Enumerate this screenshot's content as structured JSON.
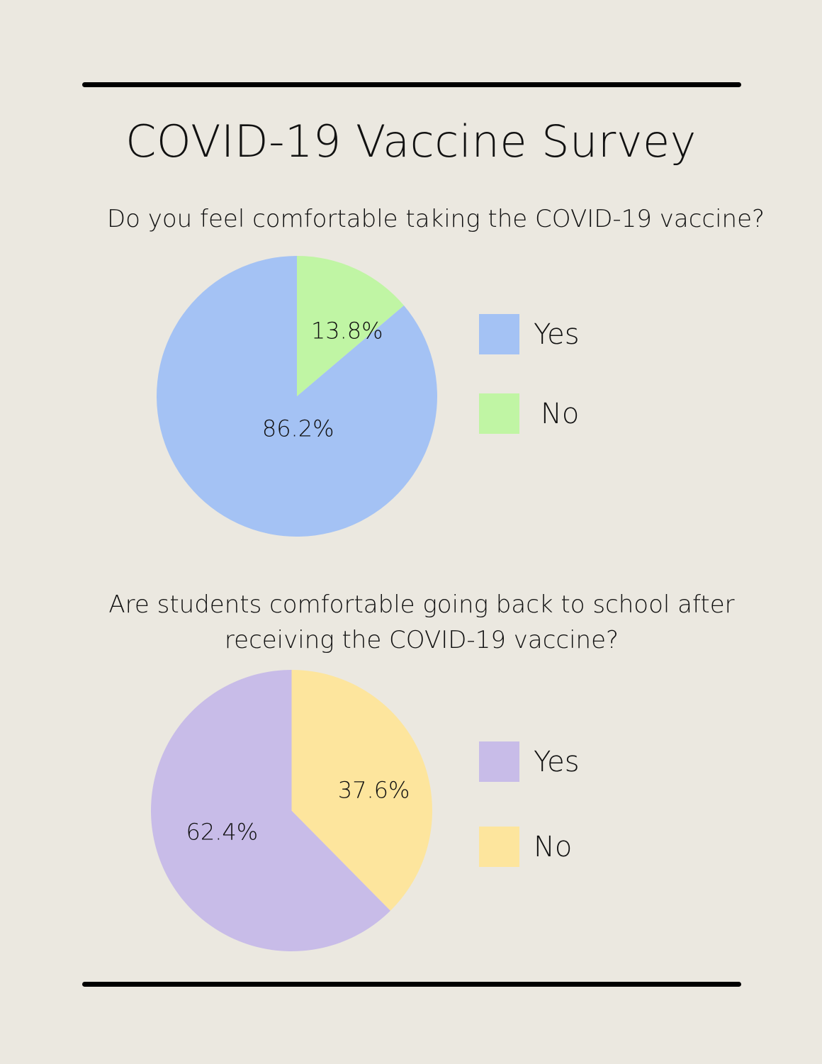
{
  "title": "COVID-19 Vaccine Survey",
  "chart_data": [
    {
      "type": "pie",
      "title": "Do you feel comfortable taking the COVID-19 vaccine?",
      "categories": [
        "Yes",
        "No"
      ],
      "values": [
        86.2,
        13.8
      ],
      "labels": [
        "86.2%",
        "13.8%"
      ],
      "colors": [
        "#a4c2f4",
        "#c0f5a4"
      ],
      "legend": "right"
    },
    {
      "type": "pie",
      "title": "Are students comfortable going back to school after\nreceiving the COVID-19 vaccine?",
      "categories": [
        "Yes",
        "No"
      ],
      "values": [
        62.4,
        37.6
      ],
      "labels": [
        "62.4%",
        "37.6%"
      ],
      "colors": [
        "#c8bce8",
        "#fde59d"
      ],
      "legend": "right"
    }
  ]
}
